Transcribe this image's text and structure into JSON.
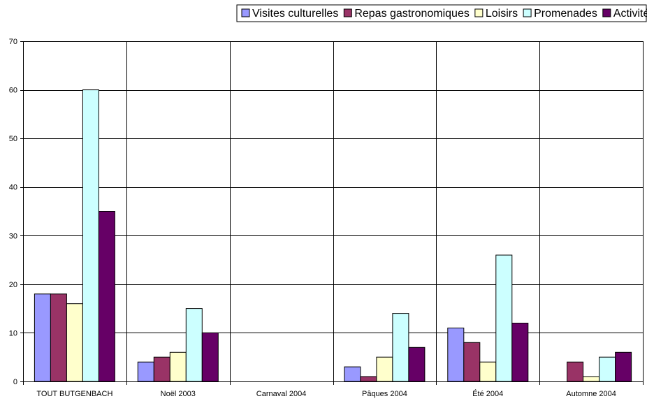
{
  "chart_data": {
    "type": "bar",
    "title": "",
    "xlabel": "",
    "ylabel": "",
    "ylim": [
      0,
      70
    ],
    "yticks": [
      0,
      10,
      20,
      30,
      40,
      50,
      60,
      70
    ],
    "grid": true,
    "legend_position": "top-right",
    "categories": [
      "TOUT BUTGENBACH",
      "Noël 2003",
      "Carnaval 2004",
      "Pâques 2004",
      "Été 2004",
      "Automne 2004"
    ],
    "series": [
      {
        "name": "Visites culturelles",
        "color": "#9999ff",
        "values": [
          18,
          4,
          0,
          3,
          11,
          0
        ]
      },
      {
        "name": "Repas gastronomiques",
        "color": "#993366",
        "values": [
          18,
          5,
          0,
          1,
          8,
          4
        ]
      },
      {
        "name": "Loisirs",
        "color": "#ffffcc",
        "values": [
          16,
          6,
          0,
          5,
          4,
          1
        ]
      },
      {
        "name": "Promenades",
        "color": "#ccffff",
        "values": [
          60,
          15,
          0,
          14,
          26,
          5
        ]
      },
      {
        "name": "Activités sportives",
        "color": "#660066",
        "values": [
          35,
          10,
          0,
          7,
          12,
          6
        ]
      }
    ]
  }
}
